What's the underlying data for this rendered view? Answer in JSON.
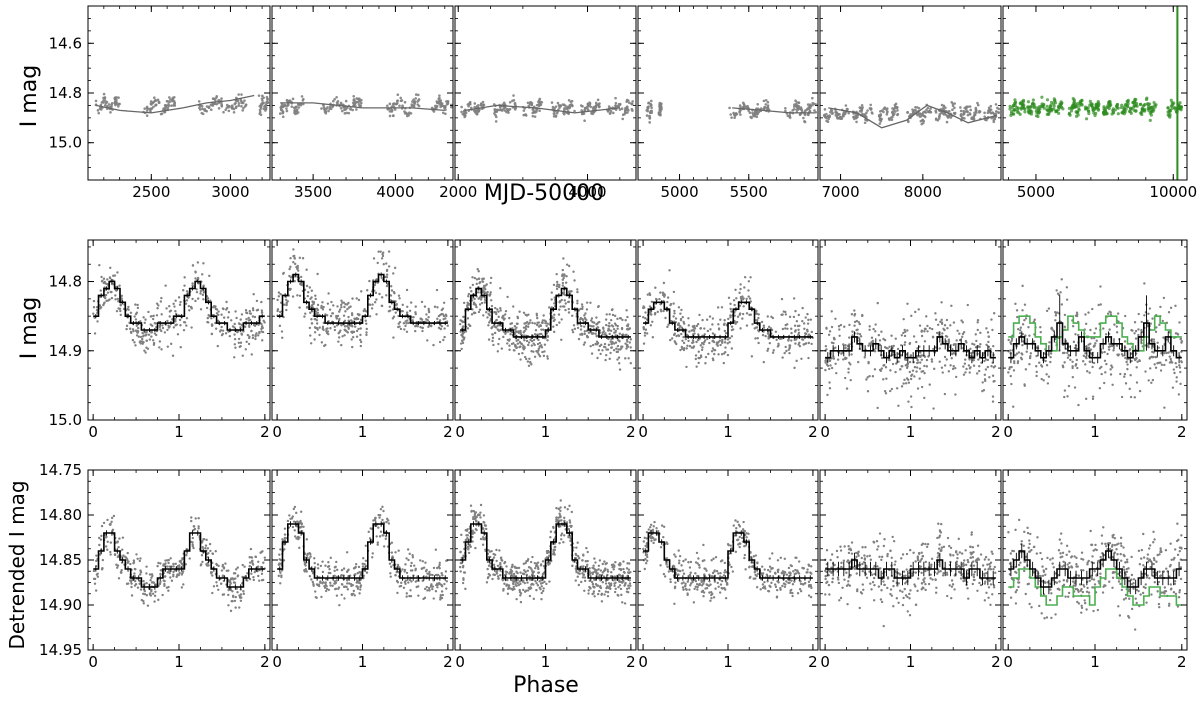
{
  "figure": {
    "row1_ylabel": "I mag",
    "row1_xlabel": "MJD-50000",
    "row2_ylabel": "I mag",
    "row3_ylabel": "Detrended I mag",
    "row3_xlabel": "Phase"
  },
  "colors": {
    "data_gray": "#808080",
    "data_green": "#2e8b1f",
    "bin_black": "#000000",
    "bin_green": "#4caf50"
  },
  "chart_data": [
    {
      "type": "scatter",
      "name": "row1-lightcurves",
      "xlabel": "MJD-50000",
      "ylabel": "I mag",
      "ylim": [
        15.15,
        14.45
      ],
      "yticks": [
        "14.6",
        "14.8",
        "15.0"
      ],
      "ytick_values": [
        14.6,
        14.8,
        15.0
      ],
      "panels": [
        {
          "xlim": [
            2100,
            3250
          ],
          "xticks": [
            "2500",
            "3000"
          ],
          "xtick_values": [
            2500,
            3000
          ],
          "mean": 14.85,
          "trend": [
            [
              2150,
              14.85
            ],
            [
              2300,
              14.87
            ],
            [
              2500,
              14.88
            ],
            [
              2700,
              14.86
            ],
            [
              2850,
              14.84
            ],
            [
              3000,
              14.83
            ],
            [
              3150,
              14.81
            ]
          ],
          "clusters": [
            [
              2150,
              2300
            ],
            [
              2450,
              2650
            ],
            [
              2800,
              3100
            ],
            [
              3180,
              3240
            ]
          ],
          "color": "gray"
        },
        {
          "xlim": [
            3250,
            4350
          ],
          "xticks": [
            "3500",
            "4000"
          ],
          "xtick_values": [
            3500,
            4000
          ],
          "mean": 14.85,
          "trend": [
            [
              3300,
              14.84
            ],
            [
              3500,
              14.84
            ],
            [
              3800,
              14.86
            ],
            [
              4100,
              14.86
            ],
            [
              4300,
              14.87
            ]
          ],
          "clusters": [
            [
              3300,
              3450
            ],
            [
              3550,
              3800
            ],
            [
              3950,
              4150
            ],
            [
              4220,
              4340
            ]
          ],
          "color": "gray"
        },
        {
          "xlim": [
            1950,
            4750
          ],
          "xticks": [
            "2000",
            "4000"
          ],
          "xtick_values": [
            2000,
            4000
          ],
          "mean": 14.86,
          "trend": [
            [
              2100,
              14.87
            ],
            [
              2600,
              14.85
            ],
            [
              3200,
              14.86
            ],
            [
              3800,
              14.88
            ],
            [
              4500,
              14.86
            ]
          ],
          "clusters": [
            [
              2050,
              2400
            ],
            [
              2550,
              2900
            ],
            [
              3000,
              3300
            ],
            [
              3450,
              3800
            ],
            [
              3900,
              4200
            ],
            [
              4300,
              4700
            ]
          ],
          "color": "gray"
        },
        {
          "xlim": [
            4700,
            6000
          ],
          "xticks": [
            "5000",
            "5500"
          ],
          "xtick_values": [
            5000,
            5500
          ],
          "mean": 14.87,
          "trend": [
            [
              5380,
              14.86
            ],
            [
              5600,
              14.87
            ],
            [
              5800,
              14.88
            ],
            [
              5980,
              14.88
            ]
          ],
          "clusters": [
            [
              4760,
              4800
            ],
            [
              4850,
              4870
            ],
            [
              5360,
              5650
            ],
            [
              5760,
              5990
            ]
          ],
          "color": "gray"
        },
        {
          "xlim": [
            6750,
            8950
          ],
          "xticks": [
            "7000",
            "8000"
          ],
          "xtick_values": [
            7000,
            8000
          ],
          "mean": 14.88,
          "trend": [
            [
              6850,
              14.86
            ],
            [
              7200,
              14.88
            ],
            [
              7500,
              14.94
            ],
            [
              7800,
              14.91
            ],
            [
              8050,
              14.85
            ],
            [
              8300,
              14.88
            ],
            [
              8550,
              14.92
            ],
            [
              8900,
              14.89
            ]
          ],
          "clusters": [
            [
              6800,
              7100
            ],
            [
              7150,
              7400
            ],
            [
              7450,
              7700
            ],
            [
              7800,
              8100
            ],
            [
              8150,
              8400
            ],
            [
              8450,
              8700
            ],
            [
              8750,
              8930
            ]
          ],
          "color": "gray"
        },
        {
          "xlim": [
            3800,
            10500
          ],
          "xticks": [
            "5000",
            "10000"
          ],
          "xtick_values": [
            5000,
            10000
          ],
          "mean": 14.86,
          "trend": [],
          "clusters": [
            [
              4050,
              4600
            ],
            [
              4700,
              5300
            ],
            [
              5400,
              6000
            ],
            [
              6200,
              6700
            ],
            [
              6800,
              7300
            ],
            [
              7450,
              8000
            ],
            [
              8100,
              8700
            ],
            [
              8800,
              9400
            ],
            [
              9800,
              10300
            ]
          ],
          "color": "green"
        }
      ]
    },
    {
      "type": "scatter",
      "name": "row2-folded",
      "xlabel": "",
      "ylabel": "I mag",
      "ylim": [
        15.0,
        14.74
      ],
      "yticks": [
        "14.8",
        "14.9",
        "15.0"
      ],
      "ytick_values": [
        14.8,
        14.9,
        15.0
      ],
      "xlim": [
        -0.06,
        2.06
      ],
      "xticks": [
        "0",
        "1",
        "2"
      ],
      "xtick_values": [
        0,
        1,
        2
      ],
      "panels": [
        {
          "binned": [
            14.85,
            14.82,
            14.81,
            14.8,
            14.81,
            14.83,
            14.85,
            14.86,
            14.86,
            14.87,
            14.87,
            14.87,
            14.86,
            14.86,
            14.86,
            14.85
          ]
        },
        {
          "binned": [
            14.85,
            14.82,
            14.8,
            14.79,
            14.8,
            14.83,
            14.84,
            14.85,
            14.85,
            14.86,
            14.86,
            14.86,
            14.86,
            14.86,
            14.86,
            14.86
          ]
        },
        {
          "binned": [
            14.87,
            14.84,
            14.82,
            14.81,
            14.82,
            14.84,
            14.86,
            14.86,
            14.87,
            14.87,
            14.88,
            14.88,
            14.88,
            14.88,
            14.88,
            14.88
          ]
        },
        {
          "binned": [
            14.86,
            14.84,
            14.83,
            14.83,
            14.84,
            14.86,
            14.87,
            14.87,
            14.88,
            14.88,
            14.88,
            14.88,
            14.88,
            14.88,
            14.88,
            14.88
          ]
        },
        {
          "binned": [
            14.91,
            14.9,
            14.9,
            14.9,
            14.9,
            14.88,
            14.89,
            14.9,
            14.9,
            14.89,
            14.9,
            14.91,
            14.9,
            14.91,
            14.9,
            14.91
          ]
        },
        {
          "binned": [
            14.91,
            14.89,
            14.88,
            14.89,
            14.89,
            14.9,
            14.91,
            14.9,
            14.88,
            14.86,
            14.89,
            14.9,
            14.9,
            14.88,
            14.9,
            14.91
          ],
          "binned_green": [
            14.88,
            14.86,
            14.85,
            14.85,
            14.86,
            14.88,
            14.89,
            14.9,
            14.9,
            14.88,
            14.87,
            14.85,
            14.86,
            14.87,
            14.88,
            14.88
          ]
        }
      ]
    },
    {
      "type": "scatter",
      "name": "row3-detrended",
      "xlabel": "Phase",
      "ylabel": "Detrended I mag",
      "ylim": [
        14.95,
        14.75
      ],
      "yticks": [
        "14.75",
        "14.80",
        "14.85",
        "14.90",
        "14.95"
      ],
      "ytick_values": [
        14.75,
        14.8,
        14.85,
        14.9,
        14.95
      ],
      "xlim": [
        -0.06,
        2.06
      ],
      "xticks": [
        "0",
        "1",
        "2"
      ],
      "xtick_values": [
        0,
        1,
        2
      ],
      "panels": [
        {
          "binned": [
            14.86,
            14.84,
            14.82,
            14.82,
            14.84,
            14.85,
            14.86,
            14.87,
            14.87,
            14.88,
            14.88,
            14.88,
            14.87,
            14.86,
            14.86,
            14.86
          ]
        },
        {
          "binned": [
            14.86,
            14.83,
            14.81,
            14.81,
            14.82,
            14.85,
            14.86,
            14.87,
            14.87,
            14.87,
            14.87,
            14.87,
            14.87,
            14.87,
            14.87,
            14.87
          ]
        },
        {
          "binned": [
            14.85,
            14.83,
            14.81,
            14.81,
            14.82,
            14.85,
            14.86,
            14.86,
            14.87,
            14.87,
            14.87,
            14.87,
            14.87,
            14.87,
            14.87,
            14.87
          ]
        },
        {
          "binned": [
            14.84,
            14.82,
            14.82,
            14.83,
            14.85,
            14.86,
            14.87,
            14.87,
            14.87,
            14.87,
            14.87,
            14.87,
            14.87,
            14.87,
            14.87,
            14.87
          ]
        },
        {
          "binned": [
            14.86,
            14.86,
            14.86,
            14.86,
            14.86,
            14.85,
            14.86,
            14.86,
            14.86,
            14.86,
            14.87,
            14.86,
            14.86,
            14.87,
            14.87,
            14.87
          ]
        },
        {
          "binned": [
            14.86,
            14.85,
            14.84,
            14.85,
            14.86,
            14.87,
            14.88,
            14.88,
            14.87,
            14.86,
            14.86,
            14.87,
            14.87,
            14.87,
            14.87,
            14.86
          ],
          "binned_green": [
            14.88,
            14.87,
            14.86,
            14.86,
            14.87,
            14.88,
            14.89,
            14.9,
            14.9,
            14.89,
            14.88,
            14.88,
            14.89,
            14.89,
            14.89,
            14.9
          ]
        }
      ]
    }
  ]
}
